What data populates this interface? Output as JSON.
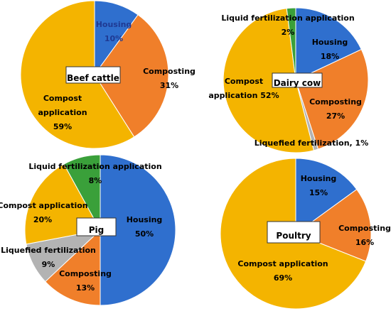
{
  "chart_data": [
    {
      "type": "pie",
      "title": "Beef cattle",
      "categories": [
        "Housing",
        "Composting",
        "Compost application"
      ],
      "values": [
        10,
        31,
        59
      ],
      "labels": [
        [
          "Housing",
          "10%"
        ],
        [
          "Composting",
          "31%"
        ],
        [
          "Compost",
          "application",
          "59%"
        ]
      ],
      "colors": [
        "#2f6fce",
        "#f07f2a",
        "#f4b400"
      ]
    },
    {
      "type": "pie",
      "title": "Dairy cow",
      "categories": [
        "Housing",
        "Composting",
        "Liquefied fertilization",
        "Compost application",
        "Liquid fertilization application"
      ],
      "values": [
        18,
        27,
        1,
        52,
        2
      ],
      "labels": [
        [
          "Housing",
          "18%"
        ],
        [
          "Composting",
          "27%"
        ],
        [
          "Liquefied fertilization, 1%"
        ],
        [
          "Compost",
          "application 52%"
        ],
        [
          "Liquid fertilization application",
          "2%"
        ]
      ],
      "colors": [
        "#2f6fce",
        "#f07f2a",
        "#b3b3b3",
        "#f4b400",
        "#3aa03a"
      ]
    },
    {
      "type": "pie",
      "title": "Pig",
      "categories": [
        "Housing",
        "Composting",
        "Liquefied fertilization",
        "Compost application",
        "Liquid fertilization application"
      ],
      "values": [
        50,
        13,
        9,
        20,
        8
      ],
      "labels": [
        [
          "Housing",
          "50%"
        ],
        [
          "Composting",
          "13%"
        ],
        [
          "Liquefied fertilization",
          "9%"
        ],
        [
          "Compost application",
          "20%"
        ],
        [
          "Liquid fertilization application",
          "8%"
        ]
      ],
      "colors": [
        "#2f6fce",
        "#f07f2a",
        "#b3b3b3",
        "#f4b400",
        "#3aa03a"
      ]
    },
    {
      "type": "pie",
      "title": "Poultry",
      "categories": [
        "Housing",
        "Composting",
        "Compost application"
      ],
      "values": [
        15,
        16,
        69
      ],
      "labels": [
        [
          "Housing",
          "15%"
        ],
        [
          "Composting",
          "16%"
        ],
        [
          "Compost application",
          "69%"
        ]
      ],
      "colors": [
        "#2f6fce",
        "#f07f2a",
        "#f4b400"
      ]
    }
  ]
}
